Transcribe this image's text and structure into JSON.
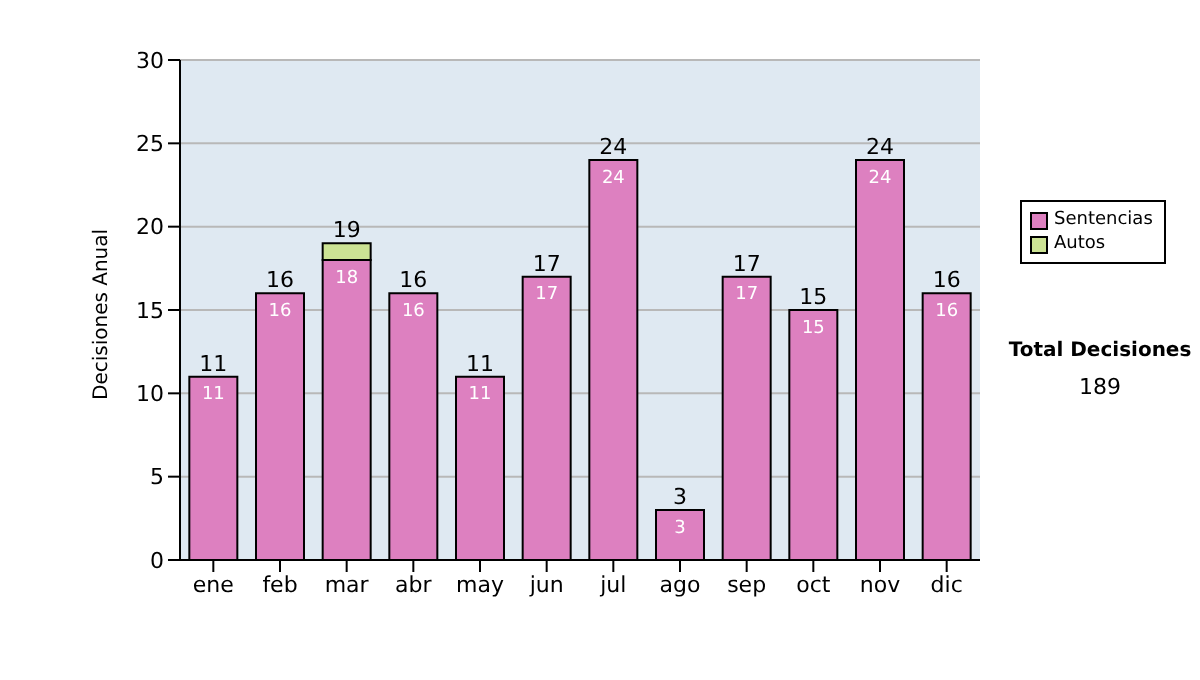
{
  "chart_data": {
    "type": "bar",
    "stacked": true,
    "ylabel": "Decisiones Anual",
    "categories": [
      "ene",
      "feb",
      "mar",
      "abr",
      "may",
      "jun",
      "jul",
      "ago",
      "sep",
      "oct",
      "nov",
      "dic"
    ],
    "series": [
      {
        "name": "Sentencias",
        "color": "#dd80c0",
        "values": [
          11,
          16,
          18,
          16,
          11,
          17,
          24,
          3,
          17,
          15,
          24,
          16
        ],
        "value_labels": [
          "11",
          "16",
          "18",
          "16",
          "11",
          "17",
          "24",
          "3",
          "17",
          "15",
          "24",
          "16"
        ]
      },
      {
        "name": "Autos",
        "color": "#cce394",
        "values": [
          null,
          null,
          1,
          null,
          null,
          null,
          null,
          null,
          null,
          null,
          null,
          null
        ]
      }
    ],
    "totals": [
      "11",
      "16",
      "19",
      "16",
      "11",
      "17",
      "24",
      "3",
      "17",
      "15",
      "24",
      "16"
    ],
    "ylim": [
      0,
      30
    ],
    "yticks": [
      0,
      5,
      10,
      15,
      20,
      25,
      30
    ],
    "grid": "y",
    "legend": "right",
    "annotations": [
      "Total Decisiones",
      "189"
    ]
  }
}
